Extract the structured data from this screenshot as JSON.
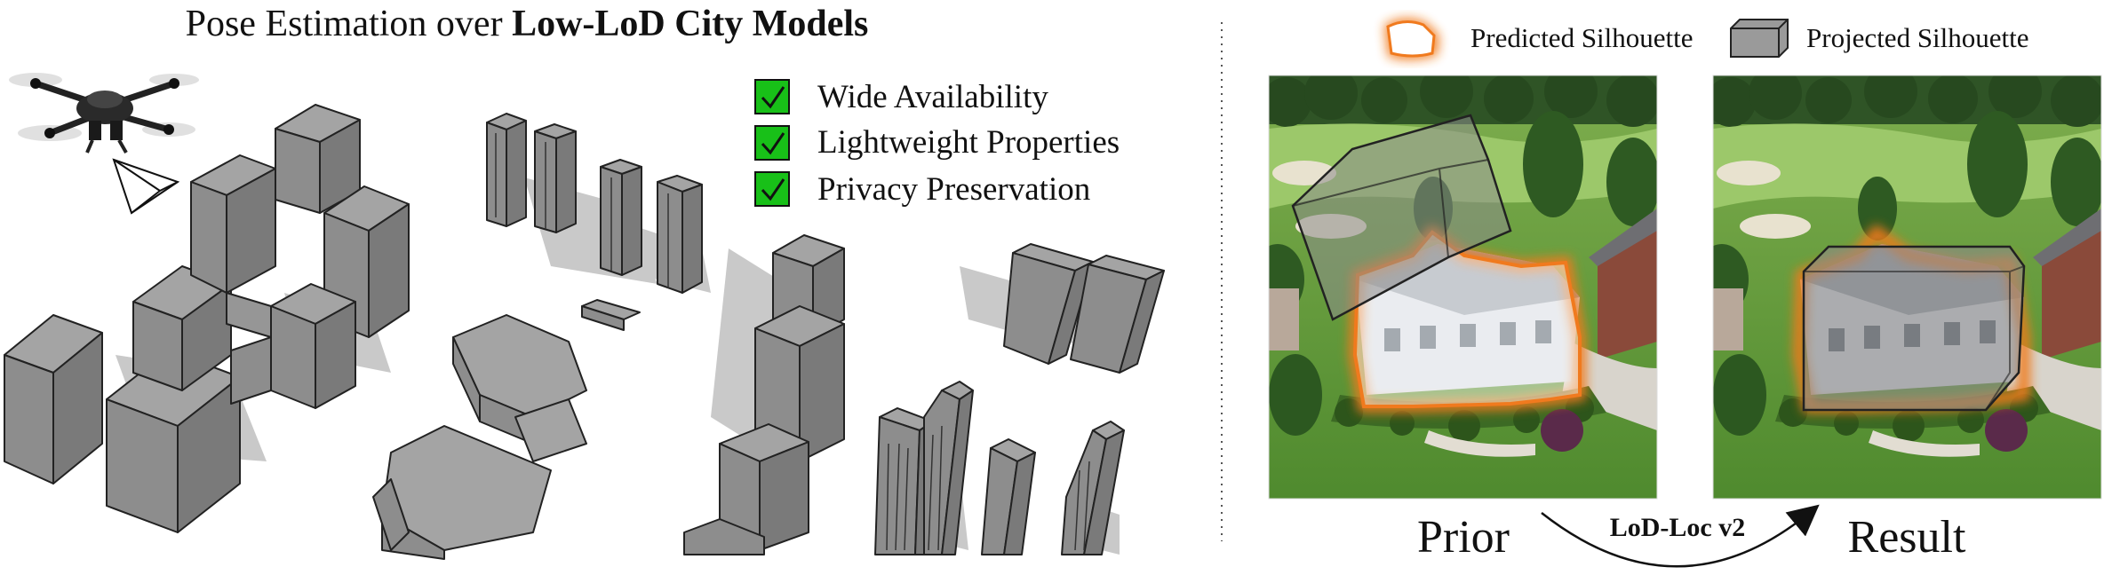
{
  "title": {
    "prefix": "Pose Estimation over ",
    "emphasis": "Low-LoD City Models"
  },
  "checklist": [
    {
      "label": "Wide Availability",
      "checked": true
    },
    {
      "label": "Lightweight Properties",
      "checked": true
    },
    {
      "label": "Privacy Preservation",
      "checked": true
    }
  ],
  "legend": {
    "predicted": "Predicted Silhouette",
    "projected": "Projected Silhouette"
  },
  "panels": {
    "prior_label": "Prior",
    "result_label": "Result",
    "method_label": "LoD-Loc v2"
  },
  "colors": {
    "building_top": "#a4a4a4",
    "building_front": "#8d8d8d",
    "building_side": "#7a7a7a",
    "shadow": "#c9c9c9",
    "check_green": "#18c018",
    "silhouette_orange": "#f07a1e",
    "projection_gray": "#8c8c8c"
  },
  "icons": [
    "drone-icon",
    "camera-frustum-icon",
    "checkbox-checked-icon"
  ]
}
